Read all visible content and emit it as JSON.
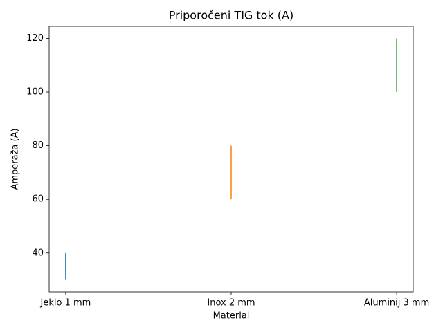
{
  "chart_data": {
    "type": "range",
    "title": "Priporočeni TIG tok (A)",
    "x_label": "Material",
    "y_label": "Amperaža (A)",
    "categories": [
      "Jeklo 1 mm",
      "Inox 2 mm",
      "Aluminij 3 mm"
    ],
    "low": [
      30,
      60,
      100
    ],
    "high": [
      40,
      80,
      120
    ],
    "colors": [
      "#1f77b4",
      "#ff7f0e",
      "#2ca02c"
    ],
    "ylim": [
      25.5,
      124.5
    ],
    "yticks": [
      40,
      60,
      80,
      100,
      120
    ],
    "grid": false
  }
}
